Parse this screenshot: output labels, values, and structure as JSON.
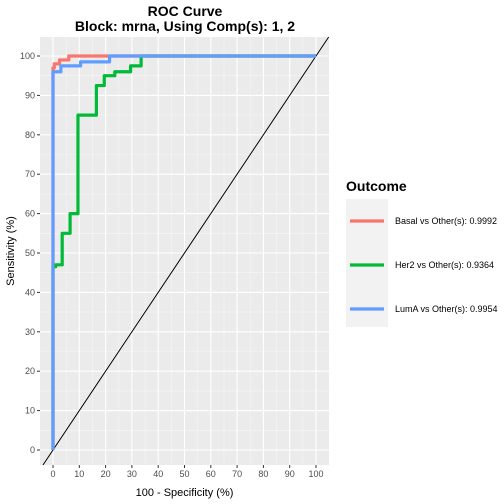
{
  "chart_data": {
    "type": "line",
    "title": "ROC Curve",
    "subtitle": "Block: mrna, Using Comp(s): 1, 2",
    "xlabel": "100 - Specificity (%)",
    "ylabel": "Sensitivity (%)",
    "xlim": [
      0,
      100
    ],
    "ylim": [
      0,
      100
    ],
    "xticks": [
      "0",
      "10",
      "20",
      "30",
      "40",
      "50",
      "60",
      "70",
      "80",
      "90",
      "100"
    ],
    "yticks": [
      "0",
      "10",
      "20",
      "30",
      "40",
      "50",
      "60",
      "70",
      "80",
      "90",
      "100"
    ],
    "grid": true,
    "legend": {
      "title": "Outcome",
      "position": "right"
    },
    "series": [
      {
        "name": "Basal vs Other(s): 0.9992",
        "color": "#F8766D",
        "x": [
          0,
          0,
          0.5,
          0.5,
          2.5,
          2.5,
          6,
          6,
          21,
          21,
          100
        ],
        "y": [
          0,
          97,
          97,
          98,
          98,
          99,
          99,
          100,
          100,
          100,
          100
        ]
      },
      {
        "name": "Her2 vs Other(s): 0.9364",
        "color": "#00BA38",
        "x": [
          0,
          0,
          1,
          1,
          3.5,
          3.5,
          6.5,
          6.5,
          9.5,
          9.5,
          16.5,
          16.5,
          19.5,
          19.5,
          23.5,
          23.5,
          29.5,
          29.5,
          33.5,
          33.5,
          100
        ],
        "y": [
          0,
          46.5,
          46.5,
          47,
          47,
          55,
          55,
          60,
          60,
          85,
          85,
          92.5,
          92.5,
          95,
          95,
          96,
          96,
          97.5,
          97.5,
          100,
          100
        ]
      },
      {
        "name": "LumA vs Other(s): 0.9954",
        "color": "#619CFF",
        "x": [
          0,
          0,
          0.5,
          0.5,
          3,
          3,
          10.5,
          10.5,
          21.5,
          21.5,
          100
        ],
        "y": [
          0,
          96,
          96,
          96,
          96,
          97.5,
          97.5,
          98.5,
          98.5,
          100,
          100
        ]
      }
    ],
    "reference_line": {
      "x": [
        0,
        100
      ],
      "y": [
        0,
        100
      ],
      "color": "#000000"
    }
  }
}
